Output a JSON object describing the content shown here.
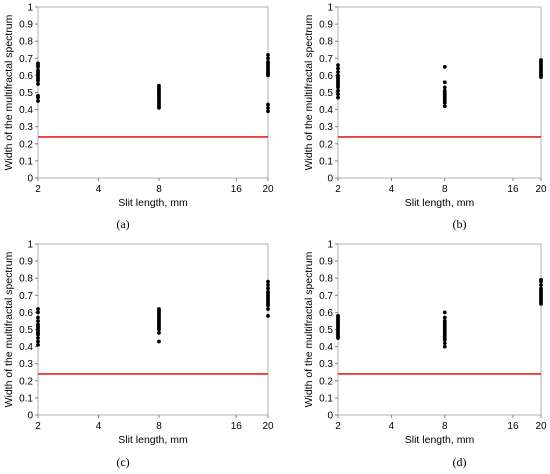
{
  "chart_data": [
    {
      "type": "scatter",
      "panel_label": "(a)",
      "xlabel": "Slit length, mm",
      "ylabel": "Width of the multifractal spectrum",
      "ylim": [
        0,
        1
      ],
      "yticks": [
        "0",
        "0.1",
        "0.2",
        "0.3",
        "0.4",
        "0.5",
        "0.6",
        "0.7",
        "0.8",
        "0.9",
        "1"
      ],
      "xticks": [
        "2",
        "4",
        "8",
        "16",
        "20"
      ],
      "threshold": 0.24,
      "threshold_color": "#e8221b",
      "points": [
        {
          "x": 2,
          "y": [
            0.45,
            0.47,
            0.48,
            0.55,
            0.57,
            0.58,
            0.59,
            0.6,
            0.61,
            0.62,
            0.63,
            0.65,
            0.66,
            0.67
          ]
        },
        {
          "x": 8,
          "y": [
            0.41,
            0.42,
            0.43,
            0.44,
            0.45,
            0.46,
            0.47,
            0.48,
            0.49,
            0.5,
            0.51,
            0.52,
            0.53,
            0.54
          ]
        },
        {
          "x": 20,
          "y": [
            0.39,
            0.41,
            0.43,
            0.6,
            0.61,
            0.62,
            0.63,
            0.64,
            0.65,
            0.66,
            0.67,
            0.68,
            0.7,
            0.72
          ]
        }
      ]
    },
    {
      "type": "scatter",
      "panel_label": "(b)",
      "xlabel": "Slit length, mm",
      "ylabel": "Width of the multifractal spectrum",
      "ylim": [
        0,
        1
      ],
      "yticks": [
        "0",
        "0.1",
        "0.2",
        "0.3",
        "0.4",
        "0.5",
        "0.6",
        "0.7",
        "0.8",
        "0.9",
        "1"
      ],
      "xticks": [
        "2",
        "4",
        "8",
        "16",
        "20"
      ],
      "threshold": 0.24,
      "threshold_color": "#e8221b",
      "points": [
        {
          "x": 2,
          "y": [
            0.47,
            0.49,
            0.51,
            0.53,
            0.54,
            0.55,
            0.56,
            0.57,
            0.58,
            0.59,
            0.6,
            0.62,
            0.64,
            0.66
          ]
        },
        {
          "x": 8,
          "y": [
            0.42,
            0.44,
            0.45,
            0.46,
            0.47,
            0.48,
            0.49,
            0.5,
            0.51,
            0.53,
            0.56,
            0.65
          ]
        },
        {
          "x": 20,
          "y": [
            0.59,
            0.6,
            0.61,
            0.62,
            0.63,
            0.64,
            0.65,
            0.66,
            0.67,
            0.68,
            0.69
          ]
        }
      ]
    },
    {
      "type": "scatter",
      "panel_label": "(c)",
      "xlabel": "Slit length, mm",
      "ylabel": "Width of the multifractal spectrum",
      "ylim": [
        0,
        1
      ],
      "yticks": [
        "0",
        "0.1",
        "0.2",
        "0.3",
        "0.4",
        "0.5",
        "0.6",
        "0.7",
        "0.8",
        "0.9",
        "1"
      ],
      "xticks": [
        "2",
        "4",
        "8",
        "16",
        "20"
      ],
      "threshold": 0.24,
      "threshold_color": "#e8221b",
      "points": [
        {
          "x": 2,
          "y": [
            0.41,
            0.43,
            0.45,
            0.47,
            0.48,
            0.49,
            0.5,
            0.51,
            0.52,
            0.53,
            0.55,
            0.57,
            0.6,
            0.62
          ]
        },
        {
          "x": 8,
          "y": [
            0.43,
            0.48,
            0.5,
            0.51,
            0.52,
            0.53,
            0.54,
            0.55,
            0.56,
            0.57,
            0.58,
            0.59,
            0.6,
            0.61,
            0.62
          ]
        },
        {
          "x": 20,
          "y": [
            0.58,
            0.62,
            0.64,
            0.65,
            0.66,
            0.67,
            0.68,
            0.69,
            0.7,
            0.71,
            0.72,
            0.74,
            0.76,
            0.78
          ]
        }
      ]
    },
    {
      "type": "scatter",
      "panel_label": "(d)",
      "xlabel": "Slit length, mm",
      "ylabel": "Width of the multifractal spectrum",
      "ylim": [
        0,
        1
      ],
      "yticks": [
        "0",
        "0.1",
        "0.2",
        "0.3",
        "0.4",
        "0.5",
        "0.6",
        "0.7",
        "0.8",
        "0.9",
        "1"
      ],
      "xticks": [
        "2",
        "4",
        "8",
        "16",
        "20"
      ],
      "threshold": 0.24,
      "threshold_color": "#e8221b",
      "points": [
        {
          "x": 2,
          "y": [
            0.45,
            0.46,
            0.47,
            0.48,
            0.49,
            0.5,
            0.51,
            0.52,
            0.53,
            0.54,
            0.55,
            0.56,
            0.57,
            0.58
          ]
        },
        {
          "x": 8,
          "y": [
            0.4,
            0.42,
            0.44,
            0.45,
            0.46,
            0.47,
            0.48,
            0.49,
            0.5,
            0.51,
            0.52,
            0.53,
            0.54,
            0.55,
            0.57,
            0.6
          ]
        },
        {
          "x": 20,
          "y": [
            0.65,
            0.66,
            0.67,
            0.68,
            0.69,
            0.7,
            0.71,
            0.72,
            0.73,
            0.74,
            0.76,
            0.78,
            0.79
          ]
        }
      ]
    }
  ]
}
